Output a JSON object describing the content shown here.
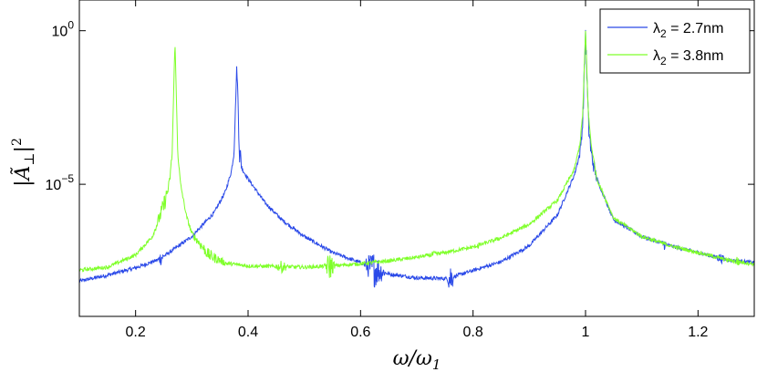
{
  "chart_data": {
    "type": "line",
    "xlabel": "ω/ω",
    "xlabel_sub": "1",
    "ylabel": "|Ã",
    "ylabel_sub": "⊥",
    "ylabel_sup": "2",
    "y_scale": "log",
    "xlim": [
      0.1,
      1.3
    ],
    "ylim": [
      5e-10,
      10
    ],
    "grid": false,
    "legend_position": "top-right",
    "x_ticks": [
      0.2,
      0.4,
      0.6,
      0.8,
      1.0,
      1.2
    ],
    "x_tick_labels": [
      "0.2",
      "0.4",
      "0.6",
      "0.8",
      "1",
      "1.2"
    ],
    "y_ticks": [
      1,
      1e-05
    ],
    "y_tick_labels": [
      {
        "base": "10",
        "exp": "0"
      },
      {
        "base": "10",
        "exp": "−5"
      }
    ],
    "series": [
      {
        "name_prefix": "λ",
        "name_sub": "2",
        "name_suffix": " = 2.7nm",
        "color": "#2a49e8",
        "x": [
          0.1,
          0.15,
          0.2,
          0.24,
          0.26,
          0.3,
          0.34,
          0.36,
          0.37,
          0.375,
          0.38,
          0.385,
          0.39,
          0.4,
          0.43,
          0.46,
          0.5,
          0.55,
          0.6,
          0.62,
          0.65,
          0.7,
          0.75,
          0.76,
          0.78,
          0.85,
          0.9,
          0.95,
          0.98,
          0.99,
          0.995,
          1.0,
          1.005,
          1.01,
          1.02,
          1.05,
          1.1,
          1.15,
          1.2,
          1.25,
          1.3
        ],
        "y": [
          7e-09,
          1.1e-08,
          1.9e-08,
          3.5e-08,
          6e-08,
          2e-07,
          1.2e-06,
          6e-06,
          2.5e-05,
          0.0001,
          0.08,
          0.0001,
          3e-05,
          1.5e-05,
          2.5e-06,
          7e-07,
          2e-07,
          6e-08,
          2.8e-08,
          1.9e-08,
          1.2e-08,
          9e-09,
          8.5e-09,
          9e-09,
          1.2e-08,
          3e-08,
          1e-07,
          1e-06,
          2e-05,
          0.0001,
          0.001,
          0.9,
          0.001,
          0.0001,
          1.5e-05,
          7e-07,
          2e-07,
          1e-07,
          6e-08,
          3.5e-08,
          2.8e-08
        ]
      },
      {
        "name_prefix": "λ",
        "name_sub": "2",
        "name_suffix": " = 3.8nm",
        "color": "#7fff2a",
        "x": [
          0.1,
          0.15,
          0.2,
          0.23,
          0.25,
          0.26,
          0.265,
          0.27,
          0.275,
          0.28,
          0.29,
          0.3,
          0.33,
          0.36,
          0.4,
          0.45,
          0.5,
          0.55,
          0.6,
          0.65,
          0.7,
          0.75,
          0.8,
          0.85,
          0.9,
          0.95,
          0.98,
          0.99,
          0.995,
          1.0,
          1.005,
          1.01,
          1.02,
          1.05,
          1.1,
          1.15,
          1.2,
          1.25,
          1.3
        ],
        "y": [
          1.6e-08,
          2e-08,
          5e-08,
          2e-07,
          2e-06,
          1e-05,
          0.0001,
          0.5,
          0.0001,
          1e-05,
          1e-06,
          2.5e-07,
          5e-08,
          2.7e-08,
          2.2e-08,
          2.1e-08,
          2e-08,
          2.2e-08,
          2.6e-08,
          3.2e-08,
          4.2e-08,
          6e-08,
          9e-08,
          1.8e-07,
          5e-07,
          3e-06,
          3e-05,
          0.0002,
          0.002,
          1.0,
          0.002,
          0.0002,
          1.5e-05,
          8e-07,
          2e-07,
          1e-07,
          6e-08,
          3.5e-08,
          2.5e-08
        ]
      }
    ],
    "noise_regions": [
      {
        "series": 0,
        "center": 0.245,
        "width": 0.006,
        "amp": 1.8
      },
      {
        "series": 0,
        "center": 0.385,
        "width": 0.006,
        "amp": 3.0
      },
      {
        "series": 0,
        "center": 0.625,
        "width": 0.02,
        "amp": 4.0
      },
      {
        "series": 0,
        "center": 0.76,
        "width": 0.006,
        "amp": 4.0
      },
      {
        "series": 0,
        "center": 1.005,
        "width": 0.02,
        "amp": 2.5
      },
      {
        "series": 0,
        "center": 1.14,
        "width": 0.006,
        "amp": 1.6
      },
      {
        "series": 0,
        "center": 1.24,
        "width": 0.012,
        "amp": 1.5
      },
      {
        "series": 1,
        "center": 0.25,
        "width": 0.02,
        "amp": 2.0
      },
      {
        "series": 1,
        "center": 0.33,
        "width": 0.05,
        "amp": 1.6
      },
      {
        "series": 1,
        "center": 0.46,
        "width": 0.015,
        "amp": 1.6
      },
      {
        "series": 1,
        "center": 0.545,
        "width": 0.01,
        "amp": 3.0
      },
      {
        "series": 1,
        "center": 0.73,
        "width": 0.02,
        "amp": 1.3
      },
      {
        "series": 1,
        "center": 0.81,
        "width": 0.004,
        "amp": 1.4
      },
      {
        "series": 1,
        "center": 1.27,
        "width": 0.006,
        "amp": 1.7
      }
    ]
  }
}
